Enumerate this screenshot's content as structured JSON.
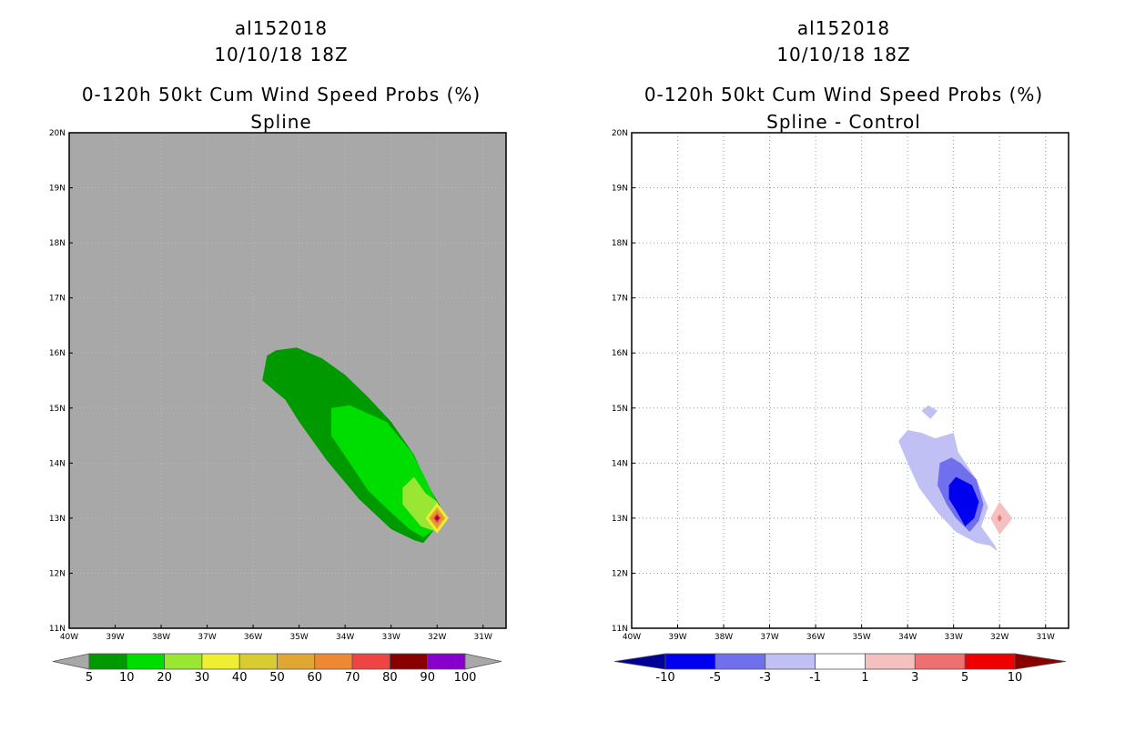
{
  "chart_data": [
    {
      "type": "contour",
      "title_lines": [
        "al152018",
        "10/10/18 18Z",
        "0-120h 50kt Cum Wind Speed Probs (%)",
        "Spline"
      ],
      "x_ticks": [
        "40W",
        "39W",
        "38W",
        "37W",
        "36W",
        "35W",
        "34W",
        "33W",
        "32W",
        "31W"
      ],
      "y_ticks": [
        "11N",
        "12N",
        "13N",
        "14N",
        "15N",
        "16N",
        "17N",
        "18N",
        "19N",
        "20N"
      ],
      "lon_range": [
        -40,
        -30.5
      ],
      "lat_range": [
        11,
        20
      ],
      "grid": false,
      "background_color": "#a8a8a8",
      "colorbar": {
        "levels": [
          "5",
          "10",
          "20",
          "30",
          "40",
          "50",
          "60",
          "70",
          "80",
          "90",
          "100"
        ],
        "colors": [
          "#009900",
          "#00dd00",
          "#99e633",
          "#eeee33",
          "#d9cc33",
          "#e0a833",
          "#ee8833",
          "#ee4444",
          "#880000",
          "#8800cc"
        ],
        "under_color": "#a8a8a8",
        "over_color": "#a8a8a8"
      },
      "regions": [
        {
          "level": "5-10",
          "color": "#009900",
          "points": [
            [
              -35.8,
              15.5
            ],
            [
              -35.7,
              15.95
            ],
            [
              -35.5,
              16.05
            ],
            [
              -35.05,
              16.1
            ],
            [
              -34.5,
              15.9
            ],
            [
              -34,
              15.6
            ],
            [
              -33.5,
              15.2
            ],
            [
              -33,
              14.75
            ],
            [
              -32.5,
              14.15
            ],
            [
              -32.2,
              13.6
            ],
            [
              -31.95,
              13.25
            ],
            [
              -31.85,
              13.0
            ],
            [
              -32.0,
              12.85
            ],
            [
              -32.3,
              12.55
            ],
            [
              -32.5,
              12.6
            ],
            [
              -33.0,
              12.8
            ],
            [
              -33.7,
              13.35
            ],
            [
              -34.4,
              14.05
            ],
            [
              -35,
              14.75
            ],
            [
              -35.3,
              15.15
            ]
          ]
        },
        {
          "level": "10-20",
          "color": "#00dd00",
          "points": [
            [
              -34.3,
              15.0
            ],
            [
              -33.9,
              15.05
            ],
            [
              -33.1,
              14.75
            ],
            [
              -32.55,
              14.2
            ],
            [
              -32.3,
              13.8
            ],
            [
              -32.1,
              13.45
            ],
            [
              -31.95,
              13.2
            ],
            [
              -31.9,
              13.0
            ],
            [
              -32.05,
              12.8
            ],
            [
              -32.3,
              12.65
            ],
            [
              -32.6,
              12.8
            ],
            [
              -33.0,
              13.1
            ],
            [
              -33.5,
              13.5
            ],
            [
              -33.9,
              14.0
            ],
            [
              -34.3,
              14.5
            ]
          ]
        },
        {
          "level": "20-30",
          "color": "#99e633",
          "points": [
            [
              -32.75,
              13.55
            ],
            [
              -32.5,
              13.75
            ],
            [
              -32.25,
              13.45
            ],
            [
              -32.0,
              13.3
            ],
            [
              -31.8,
              13.0
            ],
            [
              -32.0,
              12.75
            ],
            [
              -32.35,
              12.85
            ],
            [
              -32.75,
              13.25
            ]
          ]
        },
        {
          "level": "30-40",
          "color": "#eeee33",
          "points": [
            [
              -32.0,
              13.28
            ],
            [
              -31.75,
              13.0
            ],
            [
              -32.0,
              12.72
            ],
            [
              -32.25,
              13.0
            ]
          ]
        },
        {
          "level": "50-60",
          "color": "#e0a833",
          "points": [
            [
              -32.0,
              13.2
            ],
            [
              -31.82,
              13.0
            ],
            [
              -32.0,
              12.8
            ],
            [
              -32.18,
              13.0
            ]
          ]
        },
        {
          "level": "60-70",
          "color": "#ee8833",
          "points": [
            [
              -32.0,
              13.14
            ],
            [
              -31.87,
              13.0
            ],
            [
              -32.0,
              12.86
            ],
            [
              -32.13,
              13.0
            ]
          ]
        },
        {
          "level": "70-80",
          "color": "#ee4444",
          "points": [
            [
              -32.0,
              13.09
            ],
            [
              -31.92,
              13.0
            ],
            [
              -32.0,
              12.91
            ],
            [
              -32.08,
              13.0
            ]
          ]
        },
        {
          "level": "80-90",
          "color": "#880000",
          "points": [
            [
              -32.0,
              13.05
            ],
            [
              -31.95,
              13.0
            ],
            [
              -32.0,
              12.95
            ],
            [
              -32.05,
              13.0
            ]
          ]
        },
        {
          "level": "90-100",
          "color": "#8800cc",
          "points": [
            [
              -32.0,
              13.025
            ],
            [
              -31.975,
              13.0
            ],
            [
              -32.0,
              12.975
            ],
            [
              -32.025,
              13.0
            ]
          ]
        }
      ]
    },
    {
      "type": "contour",
      "title_lines": [
        "al152018",
        "10/10/18 18Z",
        "0-120h 50kt Cum Wind Speed Probs (%)",
        "Spline - Control"
      ],
      "x_ticks": [
        "40W",
        "39W",
        "38W",
        "37W",
        "36W",
        "35W",
        "34W",
        "33W",
        "32W",
        "31W"
      ],
      "y_ticks": [
        "11N",
        "12N",
        "13N",
        "14N",
        "15N",
        "16N",
        "17N",
        "18N",
        "19N",
        "20N"
      ],
      "lon_range": [
        -40,
        -30.5
      ],
      "lat_range": [
        11,
        20
      ],
      "grid": true,
      "background_color": "#ffffff",
      "colorbar": {
        "levels": [
          "-10",
          "-5",
          "-3",
          "-1",
          "1",
          "3",
          "5",
          "10"
        ],
        "colors": [
          "#0000ee",
          "#7070ee",
          "#c0c0f4",
          "#ffffff",
          "#f4c0c0",
          "#ee7070",
          "#ee0000"
        ],
        "under_color": "#000099",
        "over_color": "#880000"
      },
      "regions": [
        {
          "level": "-3 to -1",
          "color": "#c0c0f4",
          "points": [
            [
              -34.0,
              14.6
            ],
            [
              -33.7,
              14.55
            ],
            [
              -33.4,
              14.45
            ],
            [
              -33.0,
              14.55
            ],
            [
              -32.9,
              14.2
            ],
            [
              -32.5,
              13.7
            ],
            [
              -32.25,
              13.2
            ],
            [
              -32.4,
              12.85
            ],
            [
              -32.1,
              12.5
            ],
            [
              -32.05,
              12.4
            ],
            [
              -32.2,
              12.5
            ],
            [
              -32.5,
              12.55
            ],
            [
              -32.95,
              12.75
            ],
            [
              -33.35,
              13.1
            ],
            [
              -33.75,
              13.55
            ],
            [
              -34.0,
              14.0
            ],
            [
              -34.2,
              14.4
            ]
          ]
        },
        {
          "level": "-3 to -1",
          "color": "#c0c0f4",
          "points": [
            [
              -33.55,
              15.05
            ],
            [
              -33.35,
              14.95
            ],
            [
              -33.5,
              14.8
            ],
            [
              -33.7,
              14.95
            ]
          ]
        },
        {
          "level": "-5 to -3",
          "color": "#7070ee",
          "points": [
            [
              -33.3,
              14.0
            ],
            [
              -33.05,
              14.1
            ],
            [
              -32.85,
              14.0
            ],
            [
              -32.5,
              13.7
            ],
            [
              -32.35,
              13.25
            ],
            [
              -32.45,
              12.95
            ],
            [
              -32.65,
              12.75
            ],
            [
              -32.95,
              13.0
            ],
            [
              -33.15,
              13.25
            ],
            [
              -33.35,
              13.6
            ]
          ]
        },
        {
          "level": "-10 to -5",
          "color": "#0000ee",
          "points": [
            [
              -33.1,
              13.6
            ],
            [
              -32.95,
              13.75
            ],
            [
              -32.6,
              13.6
            ],
            [
              -32.45,
              13.3
            ],
            [
              -32.55,
              13.0
            ],
            [
              -32.75,
              12.85
            ],
            [
              -32.95,
              13.15
            ],
            [
              -33.1,
              13.35
            ]
          ]
        },
        {
          "level": "1 to 3",
          "color": "#f4c0c0",
          "points": [
            [
              -32.0,
              13.3
            ],
            [
              -31.72,
              13.0
            ],
            [
              -32.0,
              12.7
            ],
            [
              -32.2,
              13.0
            ]
          ]
        },
        {
          "level": "3 to 5",
          "color": "#ee7070",
          "points": [
            [
              -32.0,
              13.07
            ],
            [
              -31.95,
              13.0
            ],
            [
              -32.0,
              12.93
            ],
            [
              -32.05,
              13.0
            ]
          ]
        }
      ]
    }
  ]
}
